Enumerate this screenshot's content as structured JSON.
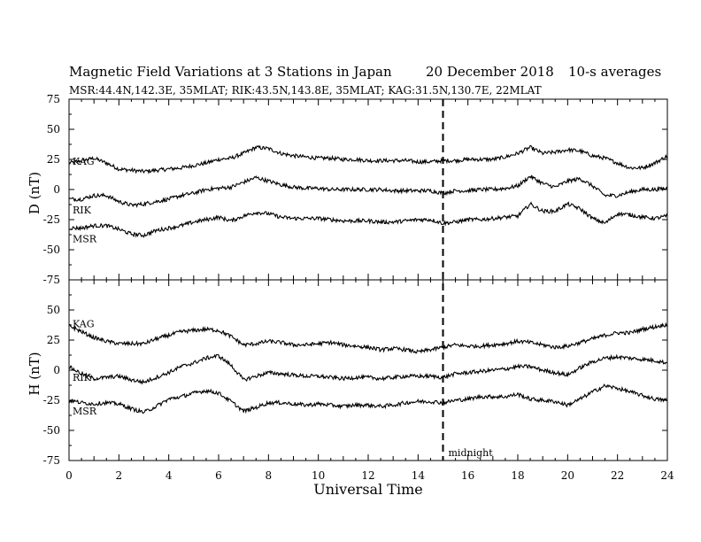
{
  "header": {
    "title": "Magnetic Field Variations at 3 Stations in Japan",
    "date": "20 December 2018",
    "averaging": "10-s averages",
    "subtitle": "MSR:44.4N,142.3E, 35MLAT;  RIK:43.5N,143.8E, 35MLAT;  KAG:31.5N,130.7E, 22MLAT"
  },
  "chart_data": {
    "type": "line",
    "xlabel": "Universal Time",
    "xlim": [
      0,
      24
    ],
    "x_ticks": [
      0,
      2,
      4,
      6,
      8,
      10,
      12,
      14,
      16,
      18,
      20,
      22,
      24
    ],
    "marker": {
      "x": 15,
      "label": "midnight",
      "style": "dashed"
    },
    "panels": [
      {
        "ylabel": "D (nT)",
        "ylim": [
          -75,
          75
        ],
        "y_ticks": [
          75,
          50,
          25,
          0,
          -25,
          -50,
          -75
        ],
        "series": [
          {
            "name": "KAG",
            "x": [
              0,
              0.5,
              1,
              1.5,
              2,
              2.5,
              3,
              3.5,
              4,
              4.5,
              5,
              5.5,
              6,
              6.5,
              7,
              7.5,
              8,
              8.5,
              9,
              9.5,
              10,
              10.5,
              11,
              11.5,
              12,
              12.5,
              13,
              13.5,
              14,
              14.5,
              15,
              15.5,
              16,
              16.5,
              17,
              17.5,
              18,
              18.5,
              19,
              19.5,
              20,
              20.5,
              21,
              21.5,
              22,
              22.5,
              23,
              23.5,
              24
            ],
            "values": [
              22,
              24,
              26,
              22,
              17,
              16,
              15,
              16,
              17,
              18,
              20,
              22,
              25,
              26,
              30,
              35,
              34,
              30,
              28,
              27,
              26,
              26,
              25,
              25,
              24,
              24,
              24,
              24,
              23,
              23,
              24,
              24,
              25,
              25,
              25,
              27,
              30,
              35,
              30,
              31,
              33,
              32,
              28,
              26,
              22,
              18,
              18,
              22,
              28
            ]
          },
          {
            "name": "RIK",
            "x": [
              0,
              0.5,
              1,
              1.5,
              2,
              2.5,
              3,
              3.5,
              4,
              4.5,
              5,
              5.5,
              6,
              6.5,
              7,
              7.5,
              8,
              8.5,
              9,
              9.5,
              10,
              10.5,
              11,
              11.5,
              12,
              12.5,
              13,
              13.5,
              14,
              14.5,
              15,
              15.5,
              16,
              16.5,
              17,
              17.5,
              18,
              18.5,
              19,
              19.5,
              20,
              20.5,
              21,
              21.5,
              22,
              22.5,
              23,
              23.5,
              24
            ],
            "values": [
              -8,
              -8,
              -5,
              -5,
              -10,
              -13,
              -12,
              -10,
              -8,
              -5,
              -3,
              0,
              1,
              2,
              6,
              10,
              7,
              4,
              2,
              1,
              1,
              0,
              0,
              0,
              0,
              0,
              -1,
              -1,
              -1,
              -1,
              -3,
              -1,
              -1,
              0,
              0,
              1,
              3,
              11,
              5,
              2,
              7,
              9,
              3,
              -5,
              -5,
              -2,
              0,
              0,
              1
            ]
          },
          {
            "name": "MSR",
            "x": [
              0,
              0.5,
              1,
              1.5,
              2,
              2.5,
              3,
              3.5,
              4,
              4.5,
              5,
              5.5,
              6,
              6.5,
              7,
              7.5,
              8,
              8.5,
              9,
              9.5,
              10,
              10.5,
              11,
              11.5,
              12,
              12.5,
              13,
              13.5,
              14,
              14.5,
              15,
              15.5,
              16,
              16.5,
              17,
              17.5,
              18,
              18.5,
              19,
              19.5,
              20,
              20.5,
              21,
              21.5,
              22,
              22.5,
              23,
              23.5,
              24
            ],
            "values": [
              -32,
              -32,
              -30,
              -30,
              -33,
              -37,
              -38,
              -34,
              -32,
              -30,
              -27,
              -25,
              -23,
              -26,
              -22,
              -19,
              -20,
              -23,
              -24,
              -24,
              -24,
              -25,
              -26,
              -26,
              -26,
              -27,
              -27,
              -26,
              -25,
              -25,
              -28,
              -27,
              -25,
              -25,
              -24,
              -23,
              -22,
              -12,
              -18,
              -18,
              -12,
              -16,
              -24,
              -28,
              -20,
              -21,
              -23,
              -24,
              -22
            ]
          }
        ]
      },
      {
        "ylabel": "H (nT)",
        "ylim": [
          -75,
          75
        ],
        "y_ticks": [
          75,
          50,
          25,
          0,
          -25,
          -50,
          -75
        ],
        "series": [
          {
            "name": "KAG",
            "x": [
              0,
              0.5,
              1,
              1.5,
              2,
              2.5,
              3,
              3.5,
              4,
              4.5,
              5,
              5.5,
              6,
              6.5,
              7,
              7.5,
              8,
              8.5,
              9,
              9.5,
              10,
              10.5,
              11,
              11.5,
              12,
              12.5,
              13,
              13.5,
              14,
              14.5,
              15,
              15.5,
              16,
              16.5,
              17,
              17.5,
              18,
              18.5,
              19,
              19.5,
              20,
              20.5,
              21,
              21.5,
              22,
              22.5,
              23,
              23.5,
              24
            ],
            "values": [
              37,
              32,
              27,
              24,
              22,
              22,
              22,
              26,
              29,
              32,
              33,
              34,
              33,
              28,
              21,
              22,
              24,
              23,
              21,
              21,
              22,
              23,
              21,
              20,
              19,
              17,
              18,
              17,
              15,
              17,
              19,
              21,
              20,
              20,
              21,
              22,
              24,
              23,
              21,
              19,
              20,
              23,
              26,
              29,
              31,
              31,
              34,
              36,
              38
            ]
          },
          {
            "name": "RIK",
            "x": [
              0,
              0.5,
              1,
              1.5,
              2,
              2.5,
              3,
              3.5,
              4,
              4.5,
              5,
              5.5,
              6,
              6.5,
              7,
              7.5,
              8,
              8.5,
              9,
              9.5,
              10,
              10.5,
              11,
              11.5,
              12,
              12.5,
              13,
              13.5,
              14,
              14.5,
              15,
              15.5,
              16,
              16.5,
              17,
              17.5,
              18,
              18.5,
              19,
              19.5,
              20,
              20.5,
              21,
              21.5,
              22,
              22.5,
              23,
              23.5,
              24
            ],
            "values": [
              3,
              -3,
              -7,
              -6,
              -5,
              -8,
              -10,
              -6,
              -2,
              3,
              6,
              10,
              12,
              4,
              -8,
              -5,
              -2,
              -3,
              -4,
              -5,
              -5,
              -6,
              -7,
              -6,
              -6,
              -7,
              -6,
              -5,
              -5,
              -5,
              -6,
              -3,
              -2,
              -1,
              0,
              1,
              3,
              3,
              0,
              -2,
              -4,
              2,
              7,
              10,
              11,
              10,
              9,
              8,
              6
            ]
          },
          {
            "name": "MSR",
            "x": [
              0,
              0.5,
              1,
              1.5,
              2,
              2.5,
              3,
              3.5,
              4,
              4.5,
              5,
              5.5,
              6,
              6.5,
              7,
              7.5,
              8,
              8.5,
              9,
              9.5,
              10,
              10.5,
              11,
              11.5,
              12,
              12.5,
              13,
              13.5,
              14,
              14.5,
              15,
              15.5,
              16,
              16.5,
              17,
              17.5,
              18,
              18.5,
              19,
              19.5,
              20,
              20.5,
              21,
              21.5,
              22,
              22.5,
              23,
              23.5,
              24
            ],
            "values": [
              -25,
              -27,
              -28,
              -27,
              -28,
              -32,
              -35,
              -30,
              -24,
              -22,
              -19,
              -17,
              -19,
              -26,
              -34,
              -31,
              -27,
              -27,
              -28,
              -29,
              -28,
              -29,
              -30,
              -29,
              -29,
              -30,
              -29,
              -27,
              -26,
              -26,
              -27,
              -25,
              -24,
              -22,
              -22,
              -22,
              -20,
              -24,
              -25,
              -26,
              -29,
              -24,
              -18,
              -13,
              -15,
              -18,
              -21,
              -24,
              -25
            ]
          }
        ]
      }
    ]
  }
}
